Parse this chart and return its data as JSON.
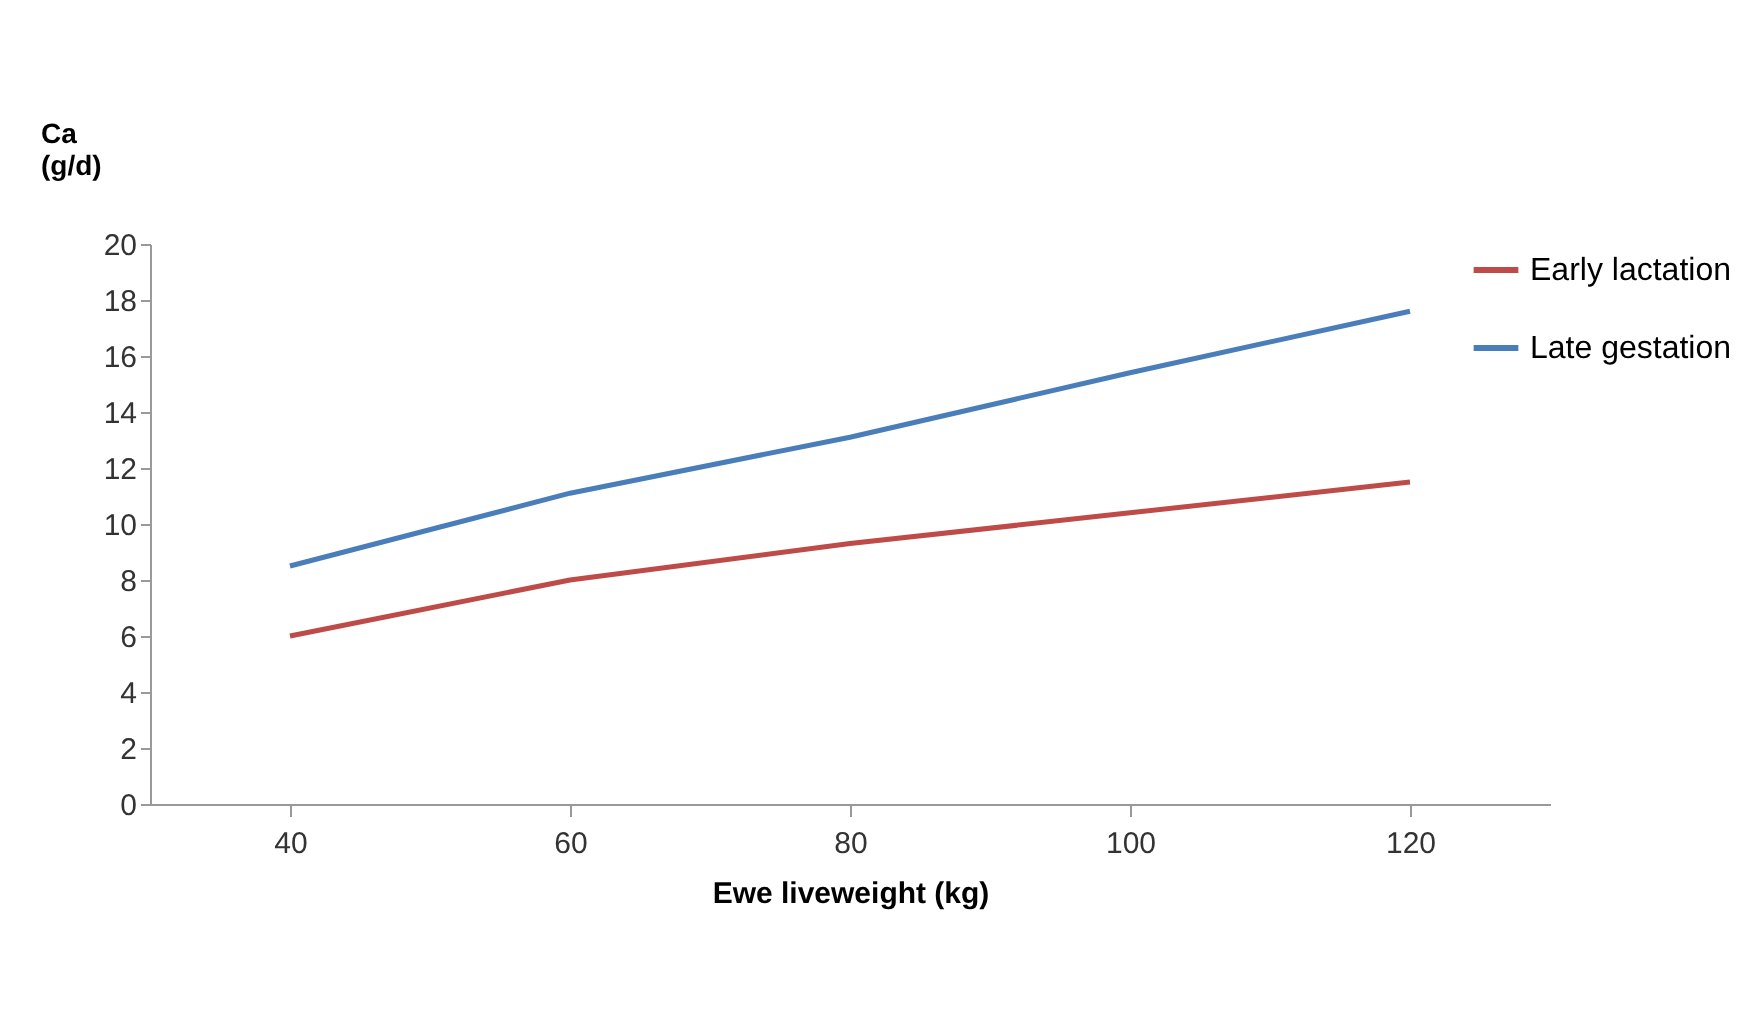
{
  "chart_data": {
    "type": "line",
    "xlabel": "Ewe liveweight (kg)",
    "ylabel": "Ca (g/d)",
    "categories": [
      "40",
      "60",
      "80",
      "100",
      "120"
    ],
    "series": [
      {
        "name": "Early lactation",
        "color": "#be4b48",
        "values": [
          6.0,
          8.0,
          9.3,
          10.4,
          11.5
        ]
      },
      {
        "name": "Late gestation",
        "color": "#4a7ebb",
        "values": [
          8.5,
          11.1,
          13.1,
          15.4,
          17.6
        ]
      }
    ],
    "ylim": [
      0,
      20
    ],
    "yticks": [
      0,
      2,
      4,
      6,
      8,
      10,
      12,
      14,
      16,
      18,
      20
    ],
    "grid": false,
    "legend": "right"
  }
}
